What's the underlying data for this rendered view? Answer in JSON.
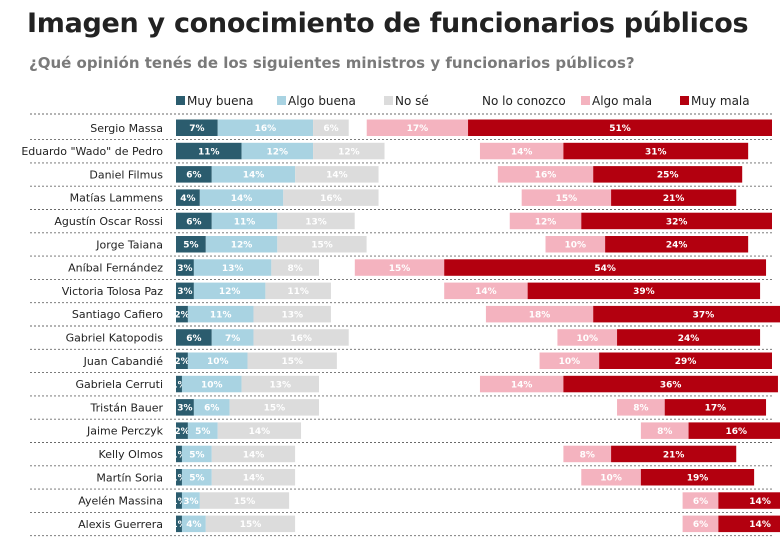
{
  "header": {
    "title": "Imagen y conocimiento de funcionarios públicos",
    "subtitle": "¿Qué opinión tenés de los siguientes ministros y funcionarios públicos?"
  },
  "chart_data": {
    "type": "bar",
    "orientation": "horizontal-diverging-stacked",
    "title": "Imagen y conocimiento de funcionarios públicos",
    "subtitle": "¿Qué opinión tenés de los siguientes ministros y funcionarios públicos?",
    "unit": "%",
    "legend_position": "top",
    "categories": [
      "Sergio Massa",
      "Eduardo \"Wado\" de Pedro",
      "Daniel Filmus",
      "Matías Lammens",
      "Agustín Oscar Rossi",
      "Jorge Taiana",
      "Aníbal Fernández",
      "Victoria Tolosa Paz",
      "Santiago Cafiero",
      "Gabriel Katopodis",
      "Juan Cabandié",
      "Gabriela Cerruti",
      "Tristán Bauer",
      "Jaime Perczyk",
      "Kelly Olmos",
      "Martín Soria",
      "Ayelén Massina",
      "Alexis Guerrera"
    ],
    "series": [
      {
        "name": "Muy buena",
        "color": "#2b5c6e",
        "text_color": "#ffffff",
        "values": [
          7,
          11,
          6,
          4,
          6,
          5,
          3,
          3,
          2,
          6,
          2,
          1,
          3,
          2,
          1,
          1,
          1,
          1
        ]
      },
      {
        "name": "Algo buena",
        "color": "#a9d3e2",
        "text_color": "#ffffff",
        "values": [
          16,
          12,
          14,
          14,
          11,
          12,
          13,
          12,
          11,
          7,
          10,
          10,
          6,
          5,
          5,
          5,
          3,
          4
        ]
      },
      {
        "name": "No sé",
        "color": "#dcdcdc",
        "text_color": "#ffffff",
        "values": [
          6,
          12,
          14,
          16,
          13,
          15,
          8,
          11,
          13,
          16,
          15,
          13,
          15,
          14,
          14,
          14,
          15,
          15
        ]
      },
      {
        "name": "No lo conozco",
        "color": "#ffffff",
        "text_color": "#222222",
        "values": [
          3,
          16,
          20,
          24,
          26,
          30,
          6,
          19,
          26,
          35,
          34,
          27,
          50,
          57,
          45,
          48,
          66,
          65
        ]
      },
      {
        "name": "Algo mala",
        "color": "#f4b3bf",
        "text_color": "#ffffff",
        "values": [
          17,
          14,
          16,
          15,
          12,
          10,
          15,
          14,
          18,
          10,
          10,
          14,
          8,
          8,
          8,
          10,
          6,
          6
        ]
      },
      {
        "name": "Muy mala",
        "color": "#b3000f",
        "text_color": "#ffffff",
        "values": [
          51,
          31,
          25,
          21,
          32,
          24,
          54,
          39,
          37,
          24,
          29,
          36,
          17,
          16,
          21,
          19,
          14,
          14
        ]
      }
    ]
  }
}
